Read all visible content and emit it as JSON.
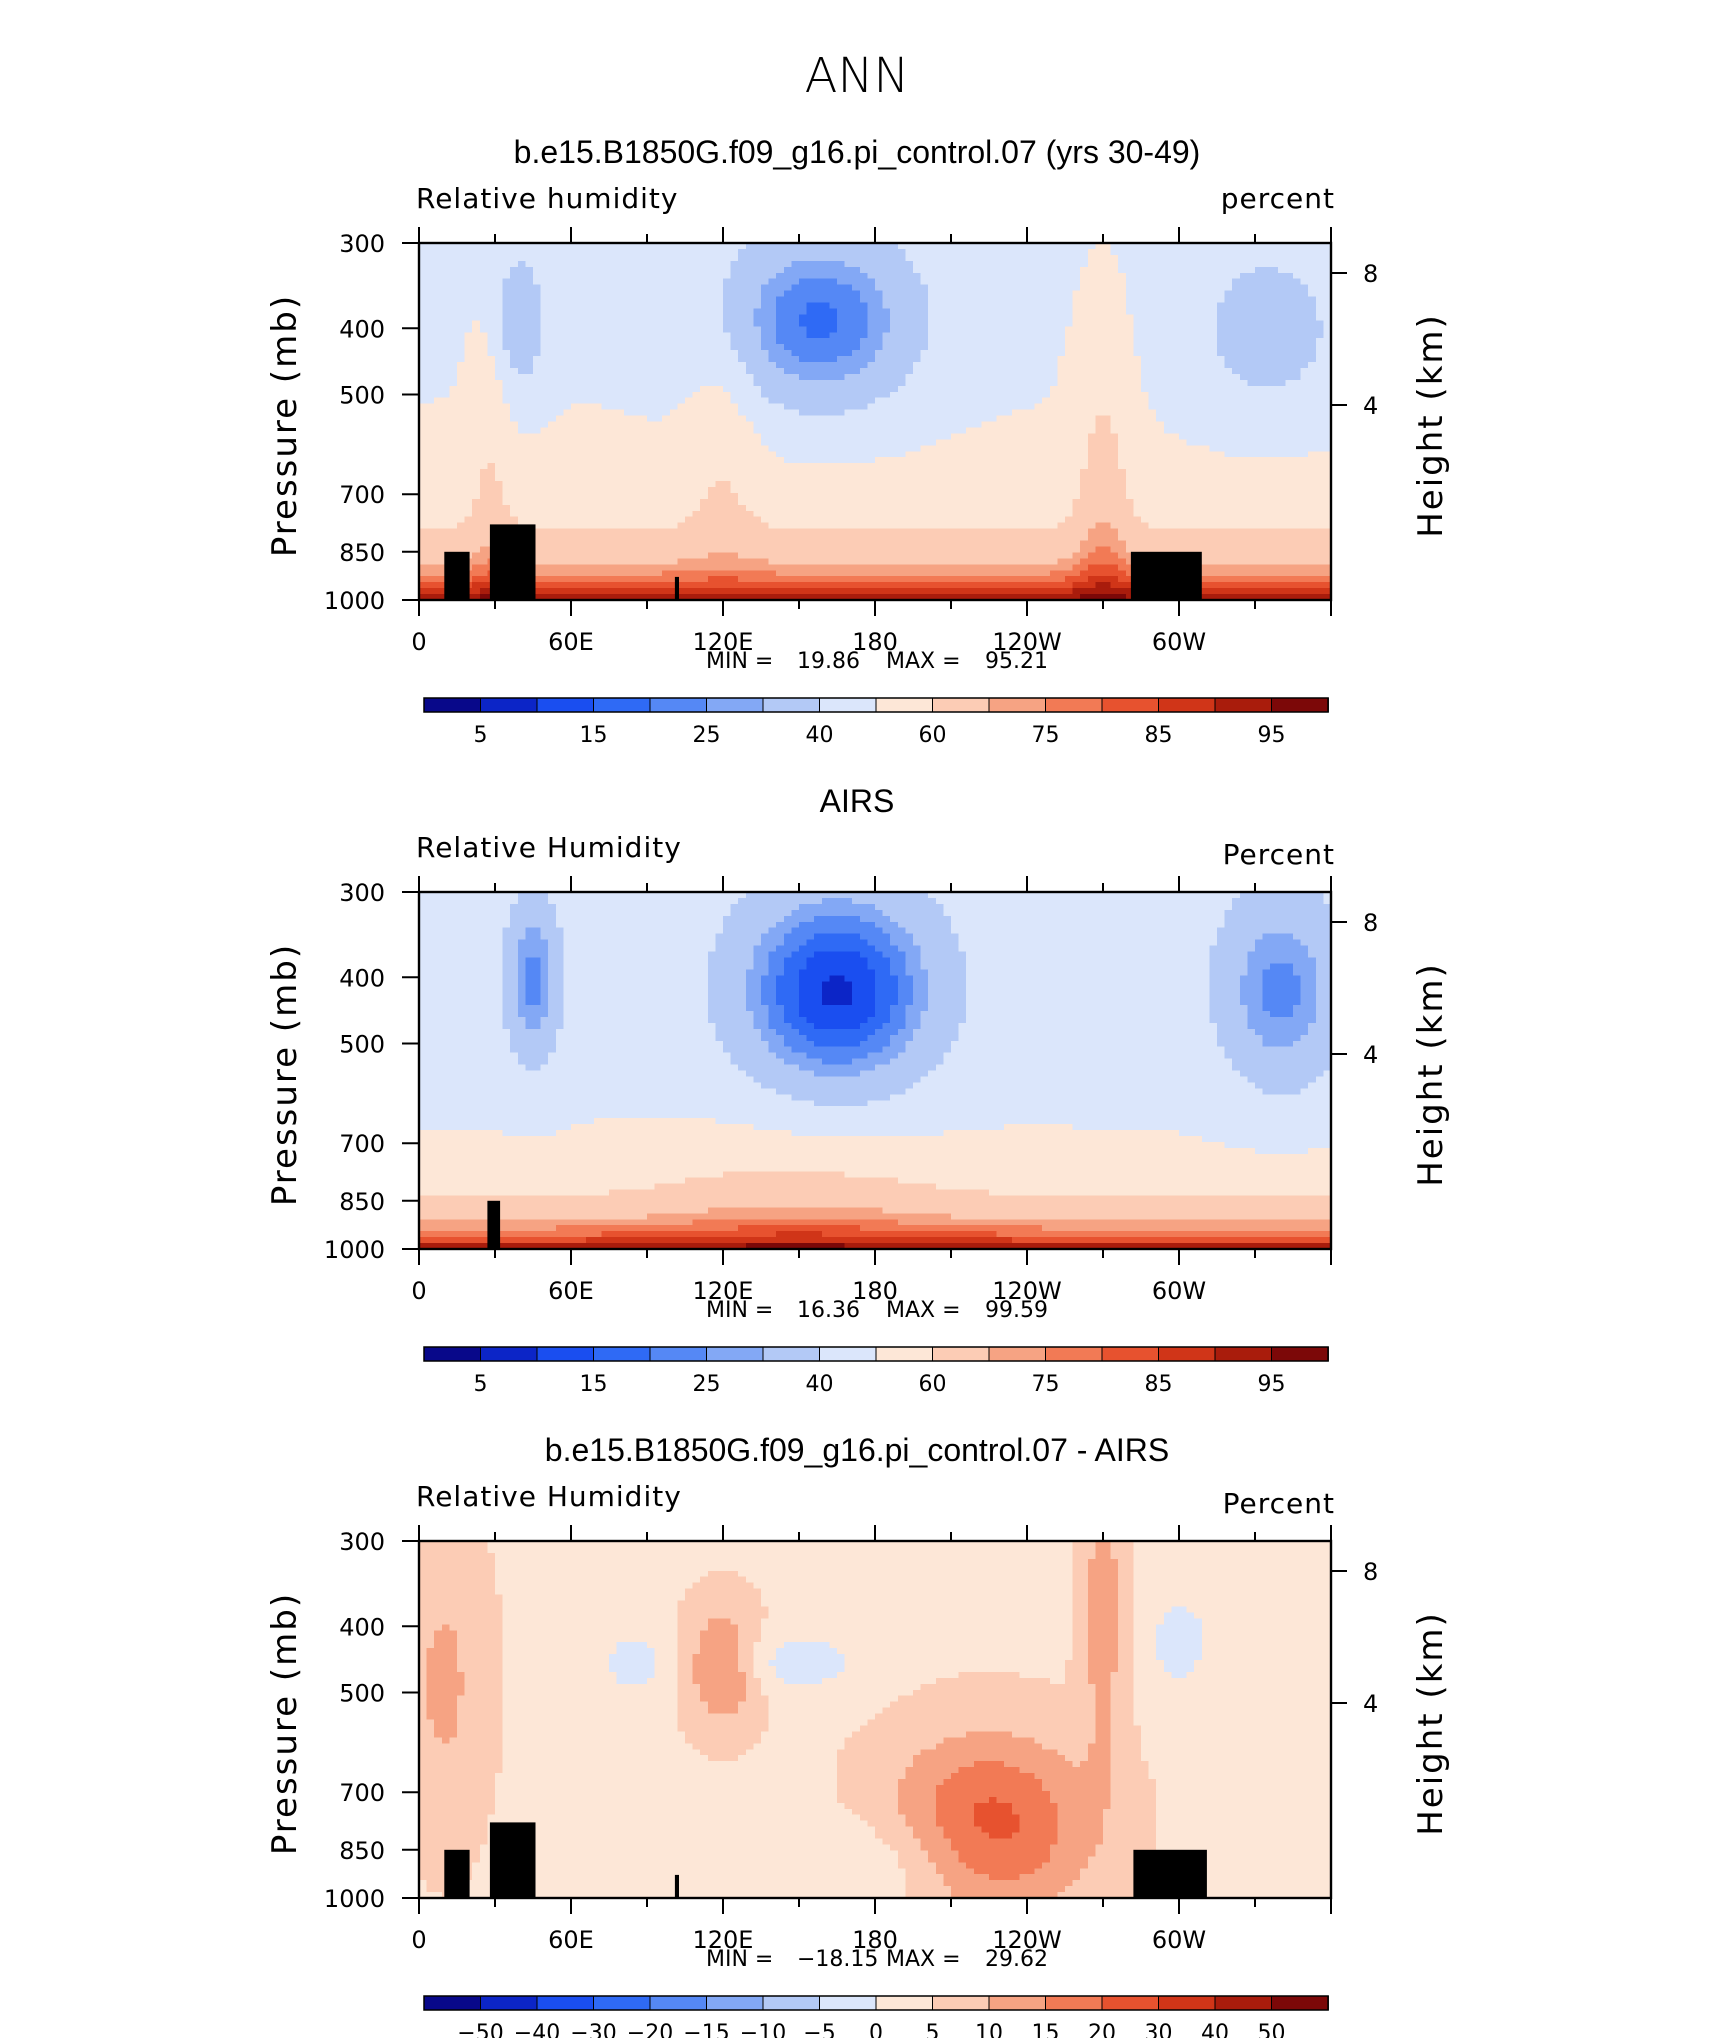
{
  "figure": {
    "season": "ANN"
  },
  "colors": {
    "rh_levels": [
      5,
      10,
      15,
      20,
      25,
      30,
      40,
      50,
      60,
      70,
      75,
      80,
      85,
      90,
      95
    ],
    "diff_levels": [
      -50,
      -40,
      -30,
      -20,
      -15,
      -10,
      -5,
      0,
      5,
      10,
      15,
      20,
      30,
      40,
      50
    ],
    "palette": [
      "#08088a",
      "#0c25c7",
      "#1a4ef0",
      "#2f6af5",
      "#5588f5",
      "#83a8f5",
      "#b3c9f6",
      "#dbe6fb",
      "#fde7d7",
      "#fcccb5",
      "#f6a383",
      "#f27a55",
      "#e7522f",
      "#d03518",
      "#a91c0c",
      "#7c0808"
    ],
    "land_mask": "#000000"
  },
  "chart_data": [
    {
      "type": "heatmap",
      "title": "b.e15.B1850G.f09_g16.pi_control.07 (yrs 30-49)",
      "left_label": "Relative humidity",
      "right_label": "percent",
      "ylabel": "Pressure (mb)",
      "ylabel_right": "Height (km)",
      "x_ticks": [
        "0",
        "60E",
        "120E",
        "180",
        "120W",
        "60W"
      ],
      "y_ticks": [
        "300",
        "400",
        "500",
        "700",
        "850",
        "1000"
      ],
      "height_ticks": [
        "8",
        "4"
      ],
      "xlim": [
        0,
        360
      ],
      "ylim": [
        1000,
        300
      ],
      "stats": {
        "min_label": "MIN =",
        "min": "19.86",
        "max_label": "MAX =",
        "max": "95.21"
      },
      "colorbar_labels": [
        "5",
        "15",
        "25",
        "40",
        "60",
        "75",
        "85",
        "95"
      ],
      "grid": false
    },
    {
      "type": "heatmap",
      "title": "AIRS",
      "left_label": "Relative Humidity",
      "right_label": "Percent",
      "ylabel": "Pressure (mb)",
      "ylabel_right": "Height (km)",
      "x_ticks": [
        "0",
        "60E",
        "120E",
        "180",
        "120W",
        "60W"
      ],
      "y_ticks": [
        "300",
        "400",
        "500",
        "700",
        "850",
        "1000"
      ],
      "height_ticks": [
        "8",
        "4"
      ],
      "xlim": [
        0,
        360
      ],
      "ylim": [
        1000,
        300
      ],
      "stats": {
        "min_label": "MIN =",
        "min": "16.36",
        "max_label": "MAX =",
        "max": "99.59"
      },
      "colorbar_labels": [
        "5",
        "15",
        "25",
        "40",
        "60",
        "75",
        "85",
        "95"
      ],
      "grid": false
    },
    {
      "type": "heatmap",
      "title": "b.e15.B1850G.f09_g16.pi_control.07 - AIRS",
      "left_label": "Relative Humidity",
      "right_label": "Percent",
      "ylabel": "Pressure (mb)",
      "ylabel_right": "Height (km)",
      "x_ticks": [
        "0",
        "60E",
        "120E",
        "180",
        "120W",
        "60W"
      ],
      "y_ticks": [
        "300",
        "400",
        "500",
        "700",
        "850",
        "1000"
      ],
      "height_ticks": [
        "8",
        "4"
      ],
      "xlim": [
        0,
        360
      ],
      "ylim": [
        1000,
        300
      ],
      "stats": {
        "min_label": "MIN =",
        "min": "−18.15",
        "max_label": "MAX =",
        "max": "29.62"
      },
      "colorbar_labels": [
        "−50",
        "−40",
        "−30",
        "−20",
        "−15",
        "−10",
        "−5",
        "0",
        "5",
        "10",
        "15",
        "20",
        "30",
        "40",
        "50"
      ],
      "grid": false
    }
  ]
}
